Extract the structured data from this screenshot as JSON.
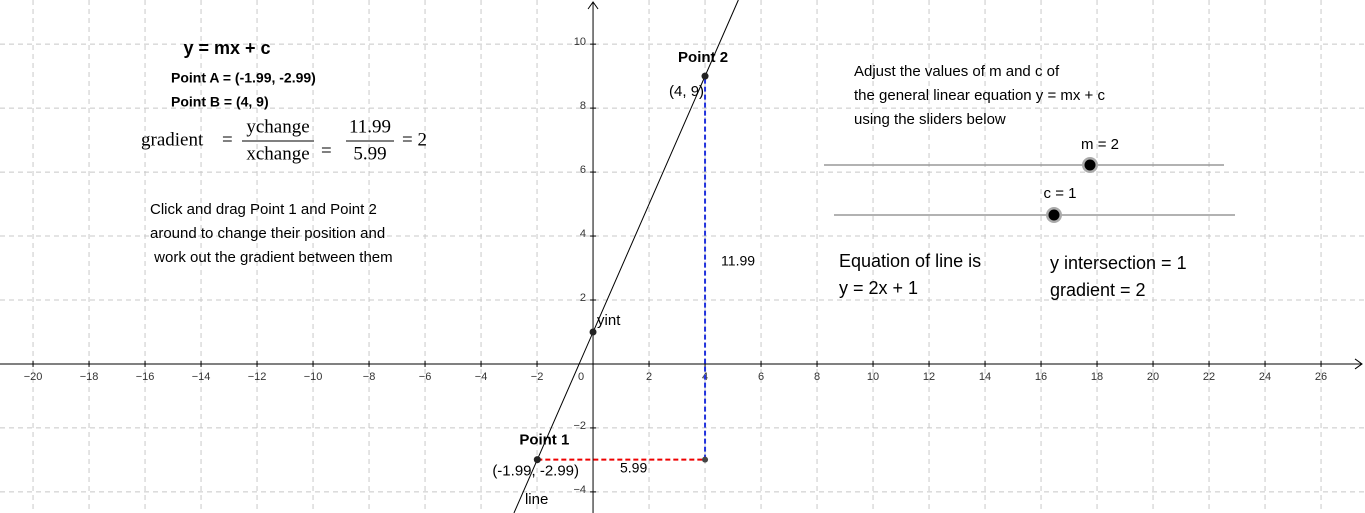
{
  "graph": {
    "xlim": [
      -21.18,
      27.57
    ],
    "ylim": [
      -4.66,
      11.38
    ],
    "xticks": [
      {
        "value": -20,
        "label": "−20"
      },
      {
        "value": -18,
        "label": "−18"
      },
      {
        "value": -16,
        "label": "−16"
      },
      {
        "value": -14,
        "label": "−14"
      },
      {
        "value": -12,
        "label": "−12"
      },
      {
        "value": -10,
        "label": "−10"
      },
      {
        "value": -8,
        "label": "−8"
      },
      {
        "value": -6,
        "label": "−6"
      },
      {
        "value": -4,
        "label": "−4"
      },
      {
        "value": -2,
        "label": "−2"
      },
      0,
      2,
      4,
      6,
      8,
      10,
      12,
      14,
      16,
      18,
      20,
      22,
      24,
      26
    ],
    "yticks": [
      {
        "value": -4,
        "label": "−4"
      },
      {
        "value": -2,
        "label": "−2"
      },
      2,
      4,
      6,
      8,
      10
    ],
    "points": [
      {
        "name": "Point 1",
        "x": -1.99,
        "y": -2.99,
        "label": "(-1.99, -2.99)"
      },
      {
        "name": "Point 2",
        "x": 4,
        "y": 9,
        "label": "(4, 9)"
      },
      {
        "name": "yint",
        "x": 0,
        "y": 1
      }
    ],
    "line_label": "line",
    "ychange_label": "11.99",
    "xchange_label": "5.99"
  },
  "panel": {
    "title": "y = mx + c",
    "point_a": "Point A = (-1.99, -2.99)",
    "point_b": "Point B = (4, 9)",
    "formula": {
      "lhs": "gradient",
      "eq1": "=",
      "num1": "ychange",
      "den1": "xchange",
      "eq2": "=",
      "num2": "11.99",
      "den2": "5.99",
      "result": "= 2"
    },
    "instructions": [
      "Click and drag Point 1 and Point 2",
      "around to change their position and",
      " work out the gradient between them"
    ],
    "adjust": [
      "Adjust the values of m and c of",
      "the general linear equation y = mx + c",
      "using the sliders below"
    ],
    "slider_m": "m = 2",
    "slider_c": "c = 1",
    "equation_heading": "Equation of line is",
    "equation": "y = 2x + 1",
    "y_intersection": "y intersection = 1",
    "gradient": "gradient = 2"
  }
}
